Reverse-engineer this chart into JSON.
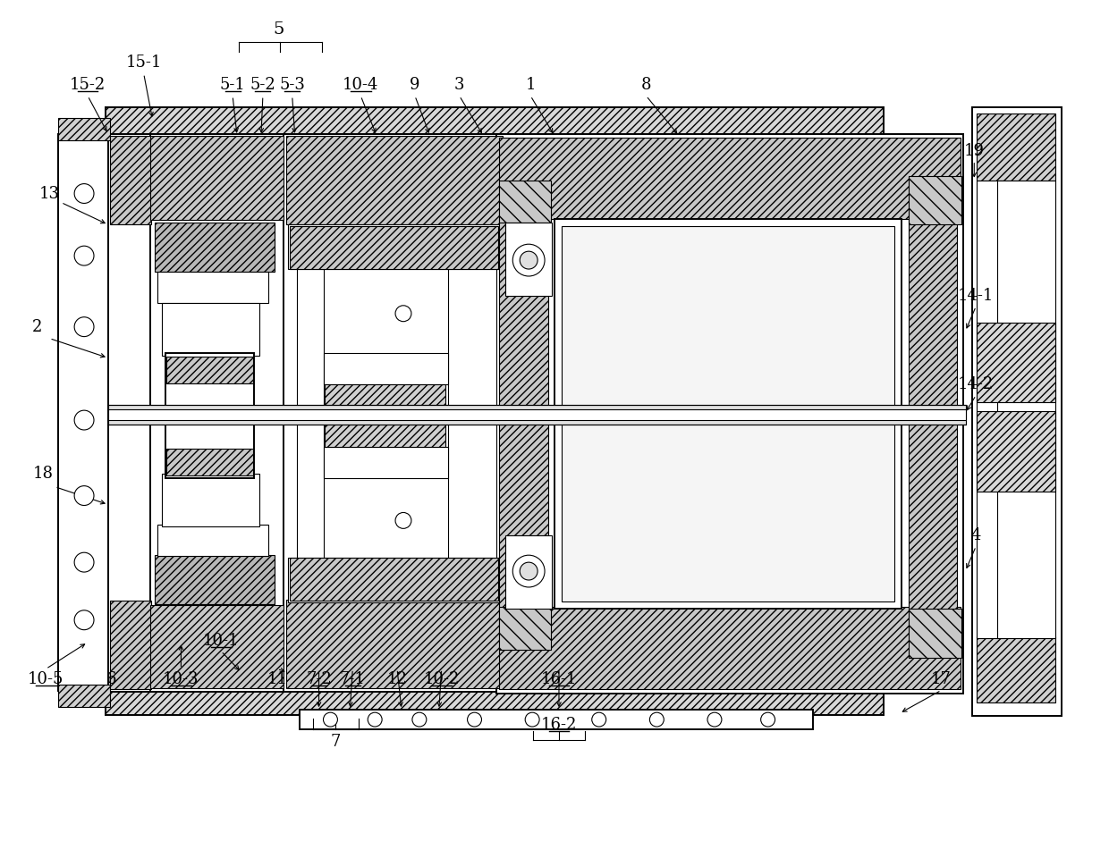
{
  "bg_color": "#ffffff",
  "lc": "#000000",
  "figsize": [
    12.4,
    9.6
  ],
  "dpi": 100,
  "labels_plain": [
    [
      "5",
      310,
      30,
      14
    ],
    [
      "15-1",
      158,
      68,
      13
    ],
    [
      "9",
      463,
      93,
      13
    ],
    [
      "3",
      513,
      93,
      13
    ],
    [
      "1",
      593,
      93,
      13
    ],
    [
      "8",
      723,
      93,
      13
    ],
    [
      "19",
      1092,
      167,
      13
    ],
    [
      "13",
      52,
      215,
      13
    ],
    [
      "2",
      38,
      365,
      13
    ],
    [
      "14-1",
      1094,
      330,
      13
    ],
    [
      "14-2",
      1094,
      430,
      13
    ],
    [
      "18",
      45,
      530,
      13
    ],
    [
      "4",
      1094,
      600,
      13
    ],
    [
      "6",
      122,
      762,
      13
    ],
    [
      "11",
      308,
      762,
      13
    ],
    [
      "12",
      443,
      762,
      13
    ],
    [
      "17",
      1055,
      762,
      13
    ],
    [
      "10-1",
      245,
      718,
      13
    ]
  ],
  "labels_underline": [
    [
      "15-2",
      95,
      93,
      13
    ],
    [
      "5-1",
      258,
      93,
      13
    ],
    [
      "5-2",
      292,
      93,
      13
    ],
    [
      "5-3",
      325,
      93,
      13
    ],
    [
      "10-4",
      402,
      93,
      13
    ],
    [
      "10-5",
      48,
      762,
      13
    ],
    [
      "10-3",
      200,
      762,
      13
    ],
    [
      "7-2",
      355,
      762,
      13
    ],
    [
      "7-1",
      393,
      762,
      13
    ],
    [
      "10-2",
      493,
      762,
      13
    ],
    [
      "16-1",
      625,
      762,
      13
    ],
    [
      "16-2",
      625,
      813,
      13
    ]
  ]
}
